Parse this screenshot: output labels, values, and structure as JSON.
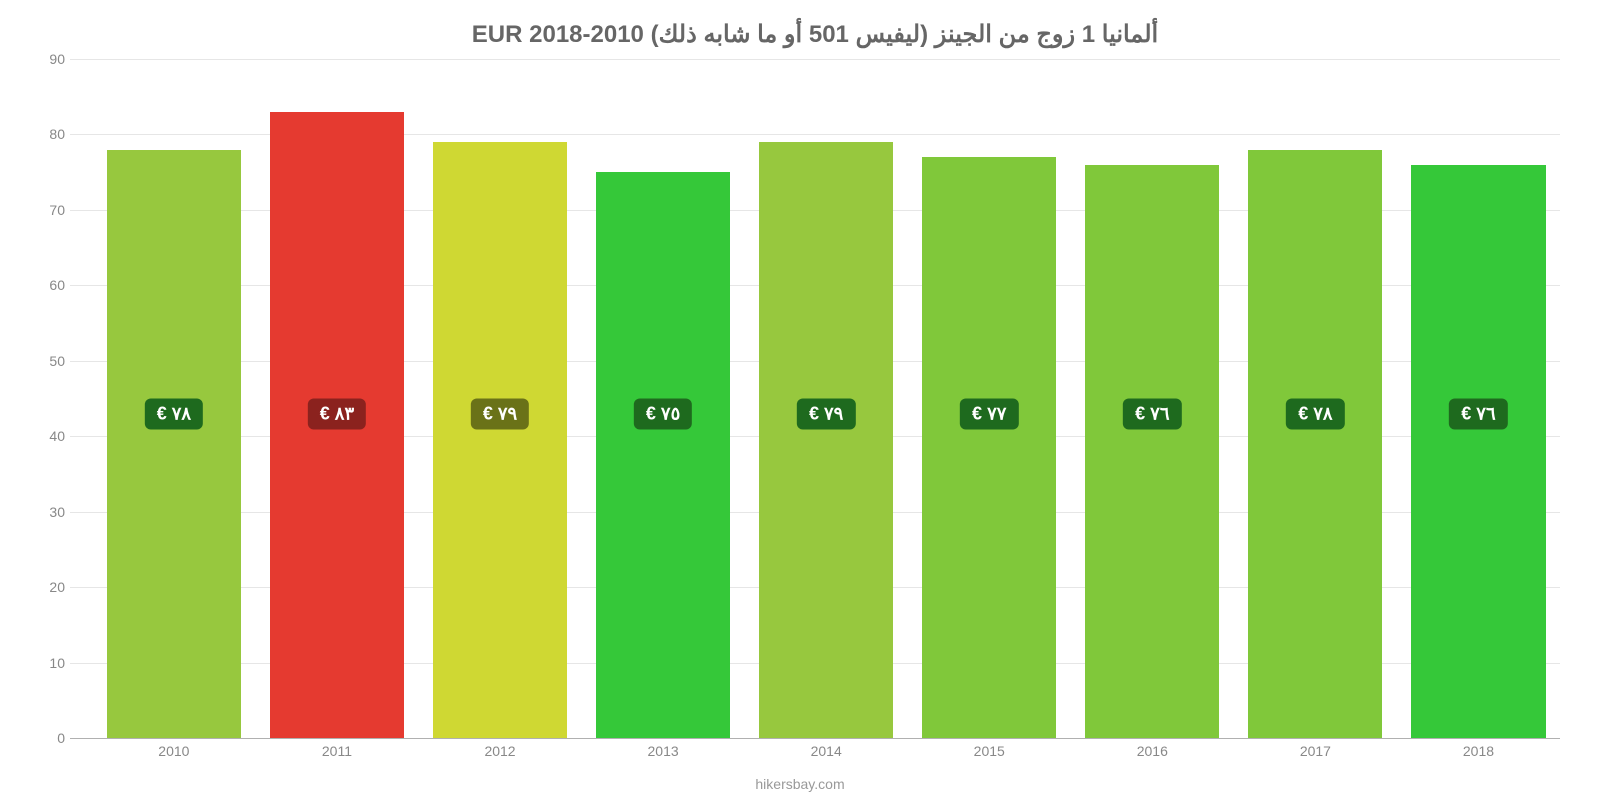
{
  "chart": {
    "type": "bar",
    "title": "ألمانيا 1 زوج من الجينز (ليفيس 501 أو ما شابه ذلك) EUR 2018-2010",
    "title_fontsize": 24,
    "title_color": "#666666",
    "background_color": "#ffffff",
    "grid_color": "#e6e6e6",
    "axis_color": "#888888",
    "axis_fontsize": 14,
    "ylim": [
      0,
      90
    ],
    "ytick_step": 10,
    "yticks": [
      0,
      10,
      20,
      30,
      40,
      50,
      60,
      70,
      80,
      90
    ],
    "categories": [
      "2010",
      "2011",
      "2012",
      "2013",
      "2014",
      "2015",
      "2016",
      "2017",
      "2018"
    ],
    "values": [
      78,
      83,
      79,
      75,
      79,
      77,
      76,
      78,
      76
    ],
    "bar_labels": [
      "٧٨ €",
      "٨٣ €",
      "٧٩ €",
      "٧٥ €",
      "٧٩ €",
      "٧٧ €",
      "٧٦ €",
      "٧٨ €",
      "٧٦ €"
    ],
    "bar_colors": [
      "#97c83e",
      "#e53a30",
      "#cfd833",
      "#35c839",
      "#97c83e",
      "#80c83a",
      "#80c83a",
      "#80c83a",
      "#35c839"
    ],
    "label_bg_colors": [
      "#1e6a1e",
      "#8b221e",
      "#6a7218",
      "#1e6a1e",
      "#1e6a1e",
      "#1e6a1e",
      "#1e6a1e",
      "#1e6a1e",
      "#1e6a1e"
    ],
    "bar_width_pct": 9.0,
    "bar_gap_pct": 2.0,
    "label_y_value": 43,
    "label_fontsize": 18,
    "plot_padding_left_pct": 1.5
  },
  "credit": "hikersbay.com"
}
